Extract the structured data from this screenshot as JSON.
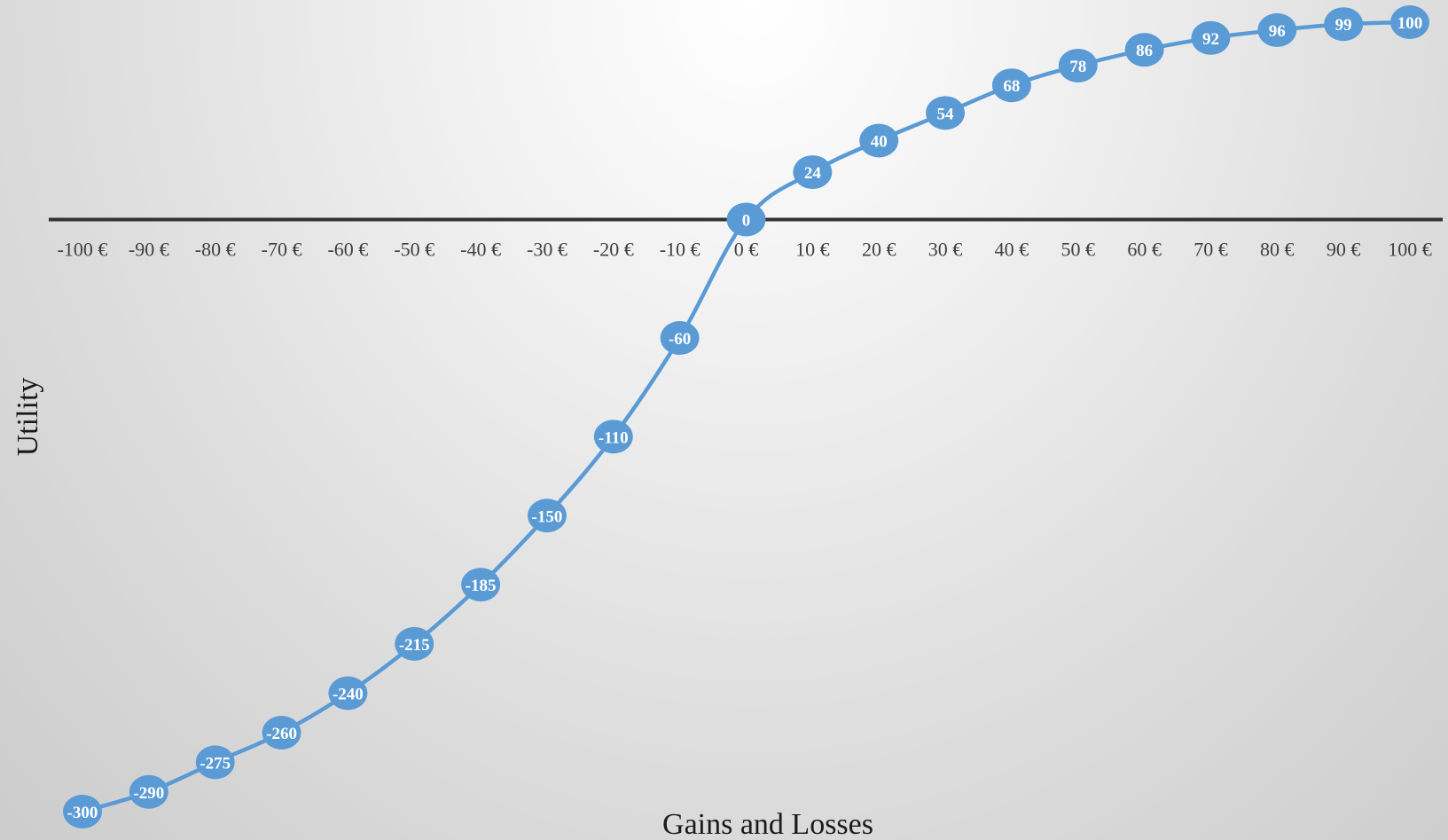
{
  "chart_data": {
    "type": "line",
    "title": "",
    "xlabel": "Gains and Losses",
    "ylabel": "Utility",
    "categories": [
      "-100 €",
      "-90 €",
      "-80 €",
      "-70 €",
      "-60 €",
      "-50 €",
      "-40 €",
      "-30 €",
      "-20 €",
      "-10 €",
      "0 €",
      "10 €",
      "20 €",
      "30 €",
      "40 €",
      "50 €",
      "60 €",
      "70 €",
      "80 €",
      "90 €",
      "100 €"
    ],
    "x": [
      -100,
      -90,
      -80,
      -70,
      -60,
      -50,
      -40,
      -30,
      -20,
      -10,
      0,
      10,
      20,
      30,
      40,
      50,
      60,
      70,
      80,
      90,
      100
    ],
    "series": [
      {
        "values": [
          -300,
          -290,
          -275,
          -260,
          -240,
          -215,
          -185,
          -150,
          -110,
          -60,
          0,
          24,
          40,
          54,
          68,
          78,
          86,
          92,
          96,
          99,
          100
        ],
        "data_labels": [
          "-300",
          "-290",
          "-275",
          "-260",
          "-240",
          "-215",
          "-185",
          "-150",
          "-110",
          "-60",
          "0",
          "24",
          "40",
          "54",
          "68",
          "78",
          "86",
          "92",
          "96",
          "99",
          "100"
        ]
      }
    ],
    "ylim": [
      -300,
      100
    ],
    "grid": false,
    "legend": "none",
    "colors": {
      "line": "#5b9bd5",
      "marker": "#5b9bd5",
      "marker_text": "#ffffff",
      "axis": "#333333",
      "tick_text": "#404040"
    }
  }
}
